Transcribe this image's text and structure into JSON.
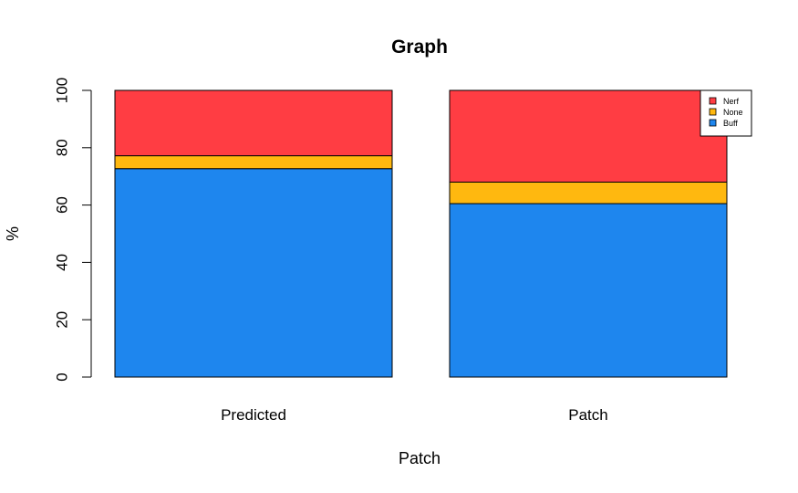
{
  "chart_data": {
    "type": "bar",
    "stacked": true,
    "title": "Graph",
    "xlabel": "Patch",
    "ylabel": "%",
    "ylim": [
      0,
      100
    ],
    "yticks": [
      0,
      20,
      40,
      60,
      80,
      100
    ],
    "categories": [
      "Predicted",
      "Patch"
    ],
    "series": [
      {
        "name": "Buff",
        "color": "#1E86EE",
        "values": [
          72.7,
          60.5
        ]
      },
      {
        "name": "None",
        "color": "#FFB80F",
        "values": [
          4.5,
          7.5
        ]
      },
      {
        "name": "Nerf",
        "color": "#FF3D43",
        "values": [
          22.8,
          32.0
        ]
      }
    ],
    "legend": {
      "position": "top-right",
      "order": [
        "Nerf",
        "None",
        "Buff"
      ]
    },
    "grid": false
  }
}
